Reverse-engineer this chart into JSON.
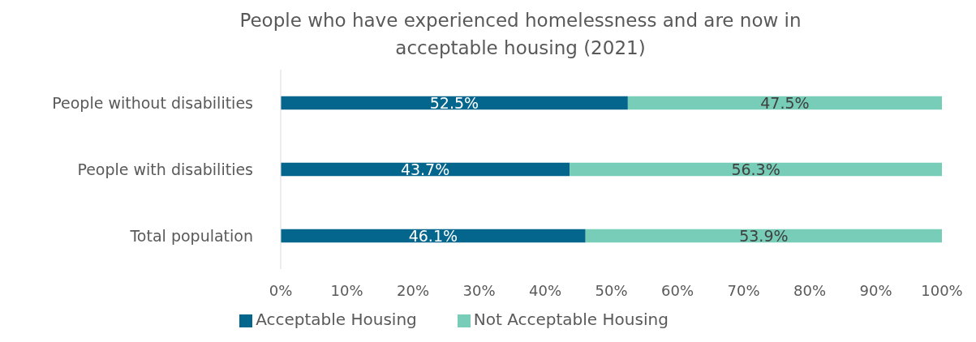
{
  "chart_data": {
    "type": "bar",
    "title": "People who have experienced homelessness and are now in acceptable housing (2021)",
    "orientation": "horizontal",
    "stacked": true,
    "categories": [
      "People without disabilities",
      "People with disabilities",
      "Total population"
    ],
    "series": [
      {
        "name": "Acceptable Housing",
        "color": "#05668d",
        "values": [
          52.5,
          43.7,
          46.1
        ],
        "value_labels": [
          "52.5%",
          "43.7%",
          "46.1%"
        ]
      },
      {
        "name": "Not Acceptable Housing",
        "color": "#77cdb7",
        "values": [
          47.5,
          56.3,
          53.9
        ],
        "value_labels": [
          "47.5%",
          "56.3%",
          "53.9%"
        ]
      }
    ],
    "xlim": [
      0,
      100
    ],
    "xticks": [
      {
        "value": 0,
        "label": "0%"
      },
      {
        "value": 10,
        "label": "10%"
      },
      {
        "value": 20,
        "label": "20%"
      },
      {
        "value": 30,
        "label": "30%"
      },
      {
        "value": 40,
        "label": "40%"
      },
      {
        "value": 50,
        "label": "50%"
      },
      {
        "value": 60,
        "label": "60%"
      },
      {
        "value": 70,
        "label": "70%"
      },
      {
        "value": 80,
        "label": "80%"
      },
      {
        "value": 90,
        "label": "90%"
      },
      {
        "value": 100,
        "label": "100%"
      }
    ],
    "grid": false,
    "legend": "bottom"
  }
}
